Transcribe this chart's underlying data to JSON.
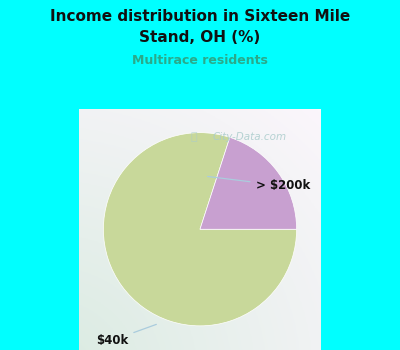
{
  "title_line1": "Income distribution in Sixteen Mile",
  "title_line2": "Stand, OH (%)",
  "subtitle": "Multirace residents",
  "title_color": "#111111",
  "subtitle_color": "#2aaa8a",
  "background_top": "#00ffff",
  "slices": [
    80,
    20
  ],
  "slice_labels": [
    "$40k",
    "> $200k"
  ],
  "slice_colors": [
    "#c8d89a",
    "#c8a0d0"
  ],
  "startangle": 72,
  "figsize": [
    4.0,
    3.5
  ],
  "dpi": 100,
  "watermark": "City-Data.com",
  "watermark_color": "#aacccc",
  "label_color": "#111111",
  "arrow_color": "#aaccdd"
}
